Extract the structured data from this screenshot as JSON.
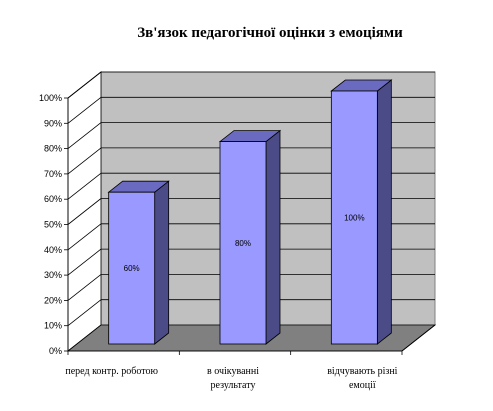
{
  "chart_data": {
    "type": "bar",
    "title": "Зв'язок педагогічної оцінки з емоціями",
    "categories": [
      [
        "перед контр. роботою"
      ],
      [
        "в очікуванні",
        "результату"
      ],
      [
        "відчувають різні",
        "емоції"
      ]
    ],
    "values": [
      60,
      80,
      100
    ],
    "data_labels": [
      "60%",
      "80%",
      "100%"
    ],
    "yticks": [
      "0%",
      "10%",
      "20%",
      "30%",
      "40%",
      "50%",
      "60%",
      "70%",
      "80%",
      "90%",
      "100%"
    ],
    "ylim": [
      0,
      100
    ],
    "grid": true,
    "style": "3d-column",
    "colors": {
      "bar_front": "#9999ff",
      "bar_side": "#4b4b87",
      "bar_top": "#6a6ac0",
      "wall": "#c0c0c0",
      "floor": "#808080"
    }
  }
}
